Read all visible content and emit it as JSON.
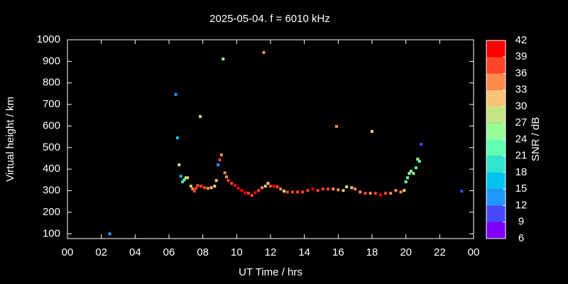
{
  "chart_data": {
    "type": "scatter",
    "title": "2025-05-04. f = 6010 kHz",
    "xlabel": "UT Time / hrs",
    "ylabel": "Virtual height / km",
    "xlim": [
      0,
      24
    ],
    "xticks": [
      {
        "value": 0,
        "label": "00"
      },
      {
        "value": 2,
        "label": "02"
      },
      {
        "value": 4,
        "label": "04"
      },
      {
        "value": 6,
        "label": "06"
      },
      {
        "value": 8,
        "label": "08"
      },
      10,
      12,
      14,
      16,
      18,
      20,
      22,
      {
        "value": 24,
        "label": "00"
      }
    ],
    "ylim": [
      78,
      1000
    ],
    "yticks": [
      100,
      200,
      300,
      400,
      500,
      600,
      700,
      800,
      900,
      1000
    ],
    "series": [
      {
        "x": [
          2.5,
          6.4,
          6.5,
          6.6,
          6.7,
          6.8,
          6.9,
          7.0,
          7.1,
          7.3,
          7.4,
          7.5,
          7.6,
          7.7,
          7.85,
          7.9,
          8.1,
          8.3,
          8.5,
          8.7,
          8.8,
          8.9,
          9.0,
          9.1,
          9.2,
          9.3,
          9.4,
          9.5,
          9.7,
          9.9,
          10.1,
          10.3,
          10.5,
          10.7,
          10.9,
          11.1,
          11.3,
          11.5,
          11.6,
          11.7,
          11.85,
          12.0,
          12.2,
          12.4,
          12.6,
          12.8,
          13.0,
          13.3,
          13.6,
          13.9,
          14.2,
          14.5,
          14.8,
          15.1,
          15.4,
          15.7,
          15.9,
          16.0,
          16.3,
          16.5,
          16.8,
          17.0,
          17.3,
          17.6,
          17.9,
          18.0,
          18.2,
          18.5,
          18.8,
          19.1,
          19.4,
          19.7,
          19.9,
          20.0,
          20.1,
          20.2,
          20.3,
          20.45,
          20.6,
          20.7,
          20.8,
          20.9,
          23.3
        ],
        "y": [
          100,
          746,
          545,
          420,
          367,
          341,
          350,
          360,
          360,
          321,
          308,
          298,
          311,
          324,
          644,
          321,
          314,
          311,
          314,
          321,
          347,
          420,
          443,
          466,
          911,
          383,
          364,
          347,
          334,
          324,
          311,
          301,
          291,
          288,
          278,
          291,
          301,
          314,
          941,
          321,
          334,
          321,
          321,
          318,
          308,
          298,
          294,
          294,
          294,
          294,
          301,
          308,
          301,
          308,
          308,
          308,
          598,
          304,
          301,
          318,
          314,
          308,
          294,
          288,
          288,
          575,
          288,
          281,
          288,
          288,
          301,
          294,
          301,
          341,
          360,
          380,
          390,
          380,
          406,
          446,
          436,
          515,
          298
        ],
        "snr": [
          14,
          13,
          16,
          27,
          16,
          20,
          22,
          25,
          30,
          32,
          33,
          36,
          36,
          38,
          28,
          38,
          36,
          33,
          32,
          31,
          30,
          14,
          36,
          33,
          25,
          34,
          35,
          36,
          38,
          39,
          39,
          40,
          39,
          38,
          38,
          39,
          38,
          34,
          33,
          30,
          30,
          38,
          39,
          38,
          33,
          27,
          36,
          38,
          37,
          38,
          37,
          39,
          38,
          37,
          36,
          34,
          35,
          33,
          30,
          27,
          30,
          33,
          34,
          36,
          33,
          30,
          38,
          39,
          36,
          34,
          33,
          35,
          30,
          22,
          21,
          24,
          25,
          25,
          23,
          24,
          23,
          11,
          11
        ]
      }
    ],
    "colorbar": {
      "label": "SNR / dB",
      "lim": [
        6,
        42
      ],
      "ticks": [
        6,
        9,
        12,
        15,
        18,
        21,
        24,
        27,
        30,
        33,
        36,
        39,
        42
      ],
      "colors": [
        "#8000ff",
        "#4848ff",
        "#2098ff",
        "#00c4f0",
        "#30e4d0",
        "#60ffb4",
        "#98ff98",
        "#c8e484",
        "#f8c478",
        "#ff8c4c",
        "#ff4428",
        "#ff0000"
      ]
    }
  }
}
